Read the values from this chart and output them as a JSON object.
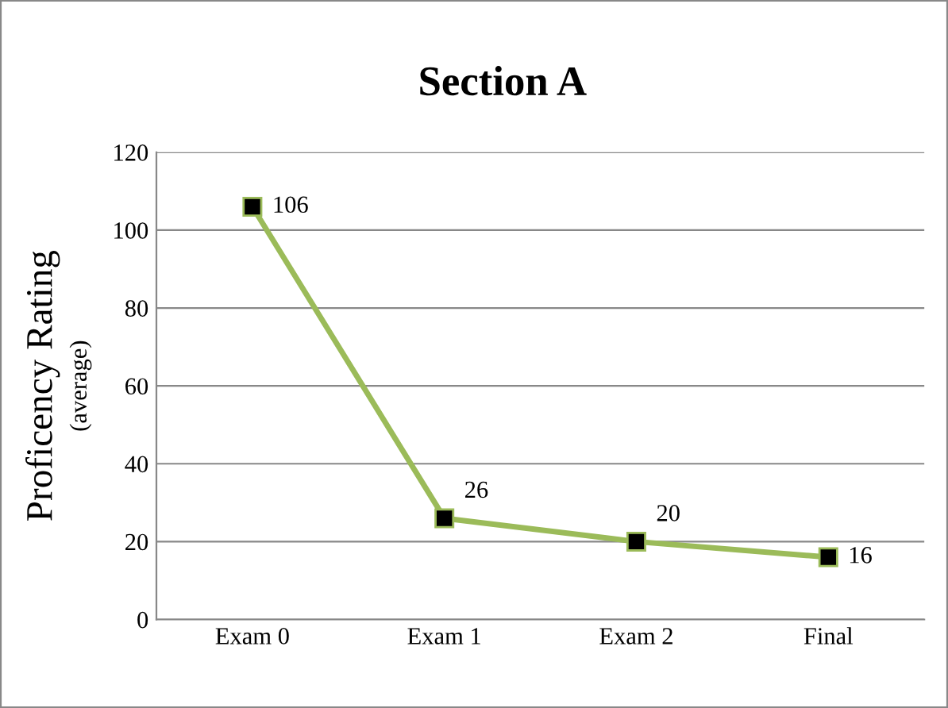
{
  "chart_data": {
    "type": "line",
    "title": "Section A",
    "ylabel": "Proficency Rating\n(average)",
    "categories": [
      "Exam 0",
      "Exam 1",
      "Exam 2",
      "Final"
    ],
    "series": [
      {
        "color": "#9bbb59",
        "values": [
          106,
          26,
          20,
          16
        ]
      }
    ],
    "ylim": [
      0,
      120
    ],
    "yticks": [
      0,
      20,
      40,
      60,
      80,
      100,
      120
    ],
    "grid": "y",
    "marker": "square",
    "line_style": "solid",
    "data_labels": true,
    "legend": false
  }
}
